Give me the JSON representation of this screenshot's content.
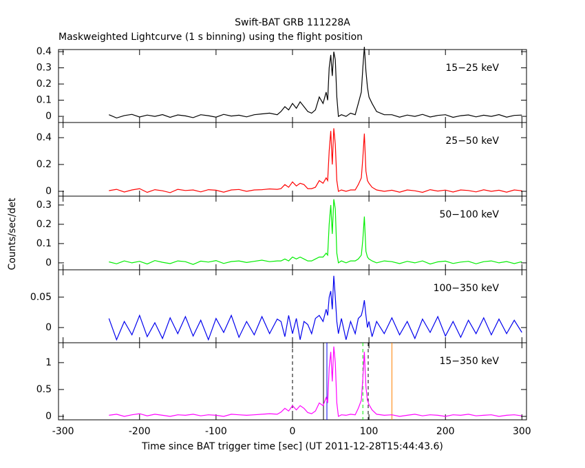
{
  "figure": {
    "title": "Swift-BAT GRB 111228A",
    "subtitle": "Maskweighted Lightcurve (1 s binning) using the flight position",
    "ylabel": "Counts/sec/det",
    "xlabel": "Time since BAT trigger time [sec] (UT 2011-12-28T15:44:43.6)",
    "xlim": [
      -306,
      306
    ],
    "xticks": [
      -300,
      -200,
      -100,
      0,
      100,
      200,
      300
    ]
  },
  "chart_data": [
    {
      "type": "line",
      "label": "15−25 keV",
      "color": "#000000",
      "ylim": [
        -0.038,
        0.413
      ],
      "yticks": [
        0,
        0.1,
        0.2,
        0.3,
        0.4
      ],
      "x": [
        -240,
        -230,
        -220,
        -210,
        -200,
        -190,
        -180,
        -170,
        -160,
        -150,
        -140,
        -130,
        -120,
        -110,
        -100,
        -90,
        -80,
        -70,
        -60,
        -50,
        -40,
        -30,
        -20,
        -15,
        -10,
        -5,
        0,
        5,
        10,
        15,
        20,
        25,
        30,
        35,
        40,
        44,
        46,
        48,
        50,
        52,
        54,
        56,
        58,
        60,
        64,
        70,
        76,
        82,
        86,
        90,
        92,
        94,
        96,
        98,
        100,
        104,
        110,
        120,
        130,
        140,
        150,
        160,
        170,
        180,
        190,
        200,
        210,
        220,
        230,
        240,
        250,
        260,
        270,
        280,
        290,
        300
      ],
      "values": [
        0.01,
        -0.01,
        0.005,
        0.012,
        -0.004,
        0.008,
        0.0,
        0.011,
        -0.006,
        0.009,
        0.003,
        -0.008,
        0.01,
        0.004,
        -0.005,
        0.012,
        0.002,
        0.007,
        -0.003,
        0.01,
        0.015,
        0.02,
        0.01,
        0.03,
        0.06,
        0.04,
        0.08,
        0.05,
        0.09,
        0.06,
        0.03,
        0.02,
        0.04,
        0.12,
        0.08,
        0.15,
        0.1,
        0.3,
        0.38,
        0.25,
        0.4,
        0.35,
        0.12,
        0.0,
        0.01,
        0.0,
        0.02,
        0.01,
        0.08,
        0.15,
        0.3,
        0.43,
        0.28,
        0.18,
        0.12,
        0.08,
        0.03,
        0.01,
        0.01,
        -0.005,
        0.008,
        0.0,
        0.012,
        -0.004,
        0.006,
        0.01,
        -0.006,
        0.004,
        0.009,
        -0.003,
        0.007,
        0.0,
        0.011,
        -0.005,
        0.006,
        0.008
      ]
    },
    {
      "type": "line",
      "label": "25−50 keV",
      "color": "#ff0000",
      "ylim": [
        -0.036,
        0.513
      ],
      "yticks": [
        0,
        0.2,
        0.4
      ],
      "x": [
        -240,
        -230,
        -220,
        -210,
        -200,
        -190,
        -180,
        -170,
        -160,
        -150,
        -140,
        -130,
        -120,
        -110,
        -100,
        -90,
        -80,
        -70,
        -60,
        -50,
        -40,
        -30,
        -20,
        -15,
        -10,
        -5,
        0,
        5,
        10,
        15,
        20,
        25,
        30,
        35,
        40,
        44,
        46,
        48,
        50,
        52,
        54,
        56,
        58,
        60,
        64,
        70,
        76,
        82,
        86,
        90,
        92,
        94,
        96,
        98,
        100,
        104,
        110,
        120,
        130,
        140,
        150,
        160,
        170,
        180,
        190,
        200,
        210,
        220,
        230,
        240,
        250,
        260,
        270,
        280,
        290,
        300
      ],
      "values": [
        0.005,
        0.015,
        -0.005,
        0.01,
        0.02,
        -0.008,
        0.012,
        0.004,
        -0.01,
        0.015,
        0.006,
        0.01,
        -0.004,
        0.012,
        0.008,
        -0.006,
        0.01,
        0.014,
        0.0,
        0.01,
        0.012,
        0.018,
        0.015,
        0.02,
        0.05,
        0.03,
        0.07,
        0.04,
        0.06,
        0.05,
        0.02,
        0.02,
        0.03,
        0.08,
        0.06,
        0.1,
        0.08,
        0.3,
        0.45,
        0.2,
        0.47,
        0.35,
        0.08,
        0.0,
        0.01,
        0.0,
        0.01,
        0.01,
        0.05,
        0.1,
        0.25,
        0.43,
        0.15,
        0.08,
        0.06,
        0.03,
        0.01,
        0.0,
        0.008,
        -0.006,
        0.01,
        0.004,
        -0.008,
        0.012,
        0.002,
        0.009,
        -0.005,
        0.01,
        0.006,
        -0.004,
        0.011,
        0.0,
        0.008,
        -0.006,
        0.01,
        0.004
      ]
    },
    {
      "type": "line",
      "label": "50−100 keV",
      "color": "#00ee00",
      "ylim": [
        -0.036,
        0.346
      ],
      "yticks": [
        0,
        0.1,
        0.2,
        0.3
      ],
      "x": [
        -240,
        -230,
        -220,
        -210,
        -200,
        -190,
        -180,
        -170,
        -160,
        -150,
        -140,
        -130,
        -120,
        -110,
        -100,
        -90,
        -80,
        -70,
        -60,
        -50,
        -40,
        -30,
        -20,
        -15,
        -10,
        -5,
        0,
        5,
        10,
        15,
        20,
        25,
        30,
        35,
        40,
        44,
        46,
        48,
        50,
        52,
        54,
        56,
        58,
        60,
        64,
        70,
        76,
        82,
        86,
        90,
        92,
        94,
        96,
        98,
        100,
        104,
        110,
        120,
        130,
        140,
        150,
        160,
        170,
        180,
        190,
        200,
        210,
        220,
        230,
        240,
        250,
        260,
        270,
        280,
        290,
        300
      ],
      "values": [
        0.005,
        -0.005,
        0.01,
        0.0,
        0.008,
        -0.006,
        0.012,
        0.003,
        -0.004,
        0.01,
        0.006,
        -0.008,
        0.009,
        0.004,
        0.012,
        -0.003,
        0.007,
        0.01,
        0.002,
        0.008,
        0.014,
        0.006,
        0.01,
        0.01,
        0.02,
        0.01,
        0.03,
        0.02,
        0.03,
        0.02,
        0.01,
        0.01,
        0.02,
        0.03,
        0.03,
        0.05,
        0.04,
        0.2,
        0.3,
        0.15,
        0.33,
        0.28,
        0.05,
        0.0,
        0.01,
        0.0,
        0.01,
        0.01,
        0.02,
        0.04,
        0.12,
        0.24,
        0.06,
        0.03,
        0.02,
        0.01,
        0.0,
        0.01,
        0.006,
        -0.004,
        0.008,
        0.0,
        0.01,
        -0.006,
        0.005,
        0.009,
        -0.003,
        0.004,
        0.008,
        -0.005,
        0.006,
        0.01,
        0.0,
        0.007,
        -0.004,
        0.006
      ]
    },
    {
      "type": "line",
      "label": "100−350 keV",
      "color": "#0000ee",
      "ylim": [
        -0.025,
        0.095
      ],
      "yticks": [
        0,
        0.05
      ],
      "x": [
        -240,
        -230,
        -220,
        -210,
        -200,
        -190,
        -180,
        -170,
        -160,
        -150,
        -140,
        -130,
        -120,
        -110,
        -100,
        -90,
        -80,
        -70,
        -60,
        -50,
        -40,
        -30,
        -20,
        -15,
        -10,
        -5,
        0,
        5,
        10,
        15,
        20,
        25,
        30,
        35,
        40,
        44,
        46,
        48,
        50,
        52,
        54,
        56,
        58,
        60,
        64,
        70,
        76,
        82,
        86,
        90,
        92,
        94,
        96,
        98,
        100,
        104,
        110,
        120,
        130,
        140,
        150,
        160,
        170,
        180,
        190,
        200,
        210,
        220,
        230,
        240,
        250,
        260,
        270,
        280,
        290,
        300
      ],
      "values": [
        0.015,
        -0.02,
        0.01,
        -0.012,
        0.02,
        -0.015,
        0.008,
        -0.018,
        0.016,
        -0.01,
        0.018,
        -0.014,
        0.012,
        -0.02,
        0.015,
        -0.008,
        0.02,
        -0.016,
        0.01,
        -0.012,
        0.018,
        -0.01,
        0.014,
        0.01,
        -0.015,
        0.02,
        -0.01,
        0.015,
        -0.02,
        0.01,
        0.005,
        -0.01,
        0.015,
        0.02,
        0.01,
        0.03,
        0.02,
        0.05,
        0.06,
        0.03,
        0.085,
        0.05,
        0.01,
        -0.01,
        0.015,
        -0.02,
        0.01,
        -0.01,
        0.015,
        0.02,
        0.03,
        0.045,
        0.02,
        0.0,
        0.01,
        -0.015,
        0.01,
        -0.01,
        0.016,
        -0.012,
        0.01,
        -0.018,
        0.014,
        -0.008,
        0.018,
        -0.014,
        0.01,
        -0.016,
        0.012,
        -0.01,
        0.016,
        -0.012,
        0.014,
        -0.01,
        0.012,
        -0.008
      ]
    },
    {
      "type": "line",
      "label": "15−350 keV",
      "color": "#ff00ff",
      "ylim": [
        -0.064,
        1.37
      ],
      "yticks": [
        0,
        0.5,
        1
      ],
      "x": [
        -240,
        -230,
        -220,
        -210,
        -200,
        -190,
        -180,
        -170,
        -160,
        -150,
        -140,
        -130,
        -120,
        -110,
        -100,
        -90,
        -80,
        -70,
        -60,
        -50,
        -40,
        -30,
        -20,
        -15,
        -10,
        -5,
        0,
        5,
        10,
        15,
        20,
        25,
        30,
        35,
        40,
        44,
        46,
        48,
        50,
        52,
        54,
        56,
        58,
        60,
        64,
        70,
        76,
        82,
        86,
        90,
        92,
        94,
        96,
        98,
        100,
        104,
        110,
        120,
        130,
        140,
        150,
        160,
        170,
        180,
        190,
        200,
        210,
        220,
        230,
        240,
        250,
        260,
        270,
        280,
        290,
        300
      ],
      "values": [
        0.02,
        0.04,
        0.0,
        0.03,
        0.05,
        0.01,
        0.04,
        0.02,
        0.0,
        0.03,
        0.02,
        0.04,
        0.01,
        0.03,
        0.02,
        0.0,
        0.04,
        0.03,
        0.02,
        0.03,
        0.04,
        0.05,
        0.04,
        0.08,
        0.15,
        0.1,
        0.2,
        0.12,
        0.2,
        0.15,
        0.07,
        0.05,
        0.1,
        0.25,
        0.2,
        0.35,
        0.25,
        0.9,
        1.2,
        0.65,
        1.3,
        1.0,
        0.25,
        0.0,
        0.03,
        0.02,
        0.04,
        0.03,
        0.15,
        0.3,
        0.7,
        1.2,
        0.55,
        0.3,
        0.22,
        0.12,
        0.04,
        0.02,
        0.03,
        0.0,
        0.02,
        0.04,
        0.01,
        0.03,
        0.02,
        0.0,
        0.03,
        0.02,
        0.04,
        0.01,
        0.02,
        0.03,
        0.0,
        0.02,
        0.03,
        0.01
      ],
      "vlines": [
        {
          "x": 0,
          "color": "#000000",
          "dash": true
        },
        {
          "x": 40.5,
          "color": "#000000",
          "dash": false
        },
        {
          "x": 45,
          "color": "#0000ee",
          "dash": false
        },
        {
          "x": 92,
          "color": "#00ee00",
          "dash": true
        },
        {
          "x": 99,
          "color": "#000000",
          "dash": true
        },
        {
          "x": 130,
          "color": "#ff8000",
          "dash": false
        }
      ]
    }
  ]
}
